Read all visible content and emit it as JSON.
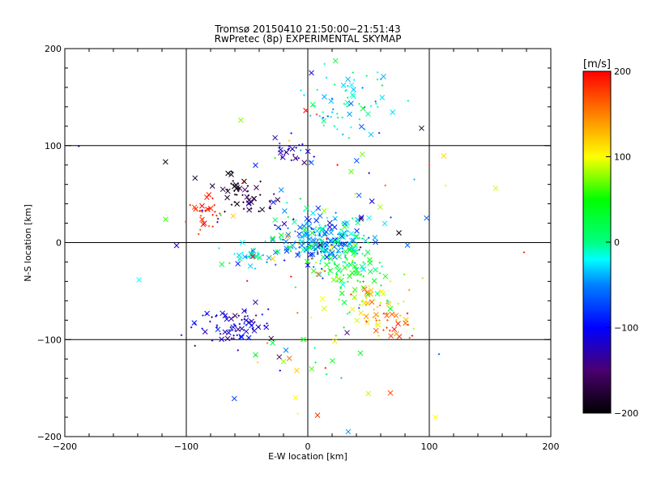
{
  "chart_data": {
    "type": "scatter",
    "title": "Tromsø 20150410 21:50:00−21:51:43",
    "subtitle": "RwPretec (8p) EXPERIMENTAL SKYMAP",
    "xlabel": "E-W location [km]",
    "ylabel": "N-S location [km]",
    "xlim": [
      -200,
      200
    ],
    "ylim": [
      -200,
      200
    ],
    "x_ticks": [
      "−200",
      "−100",
      "0",
      "100",
      "200"
    ],
    "y_ticks": [
      "−200",
      "−100",
      "0",
      "100",
      "200"
    ],
    "grid": true,
    "colorbar": {
      "label": "[m/s]",
      "range": [
        -200,
        200
      ],
      "ticks": [
        "200",
        "100",
        "0",
        "−100",
        "−200"
      ],
      "colormap": "rainbow (black-purple-blue-cyan-green-yellow-red)"
    },
    "markers": [
      "x",
      "+"
    ],
    "clusters": [
      {
        "cx": 35,
        "cy": 145,
        "sx": 18,
        "sy": 18,
        "n": 70,
        "v": -20,
        "vs": 25
      },
      {
        "cx": -15,
        "cy": 94,
        "sx": 7,
        "sy": 5,
        "n": 22,
        "v": -130,
        "vs": 15
      },
      {
        "cx": -58,
        "cy": 55,
        "sx": 10,
        "sy": 10,
        "n": 40,
        "v": -185,
        "vs": 15
      },
      {
        "cx": -40,
        "cy": 40,
        "sx": 10,
        "sy": 10,
        "n": 20,
        "v": -160,
        "vs": 20
      },
      {
        "cx": -85,
        "cy": 28,
        "sx": 7,
        "sy": 8,
        "n": 32,
        "v": 185,
        "vs": 10
      },
      {
        "cx": 10,
        "cy": 2,
        "sx": 22,
        "sy": 12,
        "n": 260,
        "v": -40,
        "vs": 35
      },
      {
        "cx": 35,
        "cy": -25,
        "sx": 15,
        "sy": 15,
        "n": 90,
        "v": 30,
        "vs": 30
      },
      {
        "cx": 50,
        "cy": -65,
        "sx": 18,
        "sy": 15,
        "n": 60,
        "v": 110,
        "vs": 40
      },
      {
        "cx": 70,
        "cy": -85,
        "sx": 10,
        "sy": 8,
        "n": 25,
        "v": 170,
        "vs": 20
      },
      {
        "cx": -60,
        "cy": -85,
        "sx": 15,
        "sy": 10,
        "n": 80,
        "v": -120,
        "vs": 25
      },
      {
        "cx": -48,
        "cy": -12,
        "sx": 5,
        "sy": 5,
        "n": 25,
        "v": -20,
        "vs": 20
      },
      {
        "cx": 0,
        "cy": -120,
        "sx": 30,
        "sy": 30,
        "n": 30,
        "v": 60,
        "vs": 80
      },
      {
        "cx": 0,
        "cy": 40,
        "sx": 60,
        "sy": 50,
        "n": 80,
        "v": 0,
        "vs": 120
      }
    ],
    "notable_points": [
      {
        "x": -117,
        "y": 24,
        "v": 60,
        "m": "x"
      },
      {
        "x": -108,
        "y": -3,
        "v": -110,
        "m": "x"
      },
      {
        "x": 3,
        "y": 175,
        "v": -110,
        "m": "x"
      },
      {
        "x": 108,
        "y": -115,
        "v": -70,
        "m": "+"
      },
      {
        "x": 105,
        "y": -180,
        "v": 100,
        "m": "x"
      },
      {
        "x": 178,
        "y": -10,
        "v": 190,
        "m": "+"
      },
      {
        "x": 8,
        "y": -178,
        "v": 180,
        "m": "x"
      },
      {
        "x": -10,
        "y": -160,
        "v": 100,
        "m": "x"
      },
      {
        "x": 68,
        "y": -155,
        "v": 170,
        "m": "x"
      },
      {
        "x": 75,
        "y": 10,
        "v": -200,
        "m": "x"
      },
      {
        "x": 100,
        "y": 80,
        "v": 190,
        "m": "+"
      }
    ]
  }
}
